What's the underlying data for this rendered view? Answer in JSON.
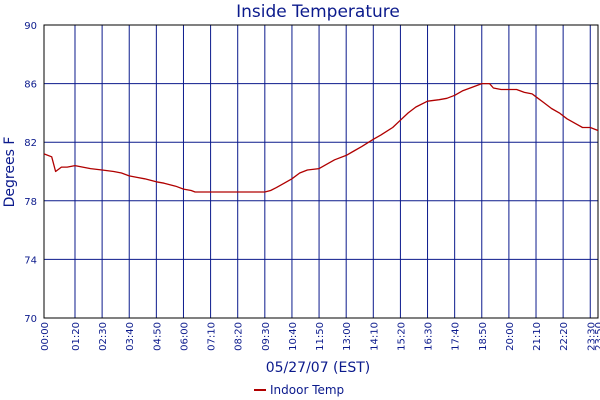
{
  "chart_data": {
    "type": "line",
    "title": "Inside Temperature",
    "xlabel": "05/27/07 (EST)",
    "ylabel": "Degrees F",
    "ylim": [
      70,
      90
    ],
    "yticks": [
      "70",
      "74",
      "78",
      "82",
      "86",
      "90"
    ],
    "xlim": [
      "00:00",
      "23:50"
    ],
    "xticks": [
      "00:00",
      "01:20",
      "02:30",
      "03:40",
      "04:50",
      "06:00",
      "07:10",
      "08:20",
      "09:30",
      "10:40",
      "11:50",
      "13:00",
      "14:10",
      "15:20",
      "16:30",
      "17:40",
      "18:50",
      "20:00",
      "21:10",
      "22:20",
      "23:30",
      "23:50"
    ],
    "grid": true,
    "legend_position": "bottom",
    "colors": {
      "grid": "#0b1a8c",
      "series": "#b00000",
      "text": "#0b1a8c",
      "axis": "#000000"
    },
    "series": [
      {
        "name": "Indoor Temp",
        "x": [
          "00:00",
          "00:20",
          "00:30",
          "00:45",
          "01:00",
          "01:20",
          "01:40",
          "02:00",
          "02:30",
          "03:00",
          "03:20",
          "03:40",
          "04:00",
          "04:20",
          "04:50",
          "05:10",
          "05:40",
          "06:00",
          "06:20",
          "06:30",
          "07:10",
          "07:40",
          "08:20",
          "09:00",
          "09:30",
          "09:45",
          "10:00",
          "10:20",
          "10:40",
          "11:00",
          "11:20",
          "11:50",
          "12:10",
          "12:30",
          "13:00",
          "13:20",
          "13:40",
          "14:10",
          "14:30",
          "15:00",
          "15:20",
          "15:40",
          "16:00",
          "16:30",
          "17:00",
          "17:20",
          "17:40",
          "18:00",
          "18:20",
          "18:40",
          "18:50",
          "19:10",
          "19:20",
          "19:40",
          "20:00",
          "20:20",
          "20:40",
          "21:00",
          "21:10",
          "21:30",
          "21:50",
          "22:10",
          "22:30",
          "22:50",
          "23:10",
          "23:30",
          "23:50"
        ],
        "y": [
          81.2,
          81.0,
          80.0,
          80.3,
          80.3,
          80.4,
          80.3,
          80.2,
          80.1,
          80.0,
          79.9,
          79.7,
          79.6,
          79.5,
          79.3,
          79.2,
          79.0,
          78.8,
          78.7,
          78.6,
          78.6,
          78.6,
          78.6,
          78.6,
          78.6,
          78.7,
          78.9,
          79.2,
          79.5,
          79.9,
          80.1,
          80.2,
          80.5,
          80.8,
          81.1,
          81.4,
          81.7,
          82.2,
          82.5,
          83.0,
          83.5,
          84.0,
          84.4,
          84.8,
          84.9,
          85.0,
          85.2,
          85.5,
          85.7,
          85.9,
          86.0,
          86.0,
          85.7,
          85.6,
          85.6,
          85.6,
          85.4,
          85.3,
          85.1,
          84.7,
          84.3,
          84.0,
          83.6,
          83.3,
          83.0,
          83.0,
          82.8
        ]
      }
    ]
  }
}
